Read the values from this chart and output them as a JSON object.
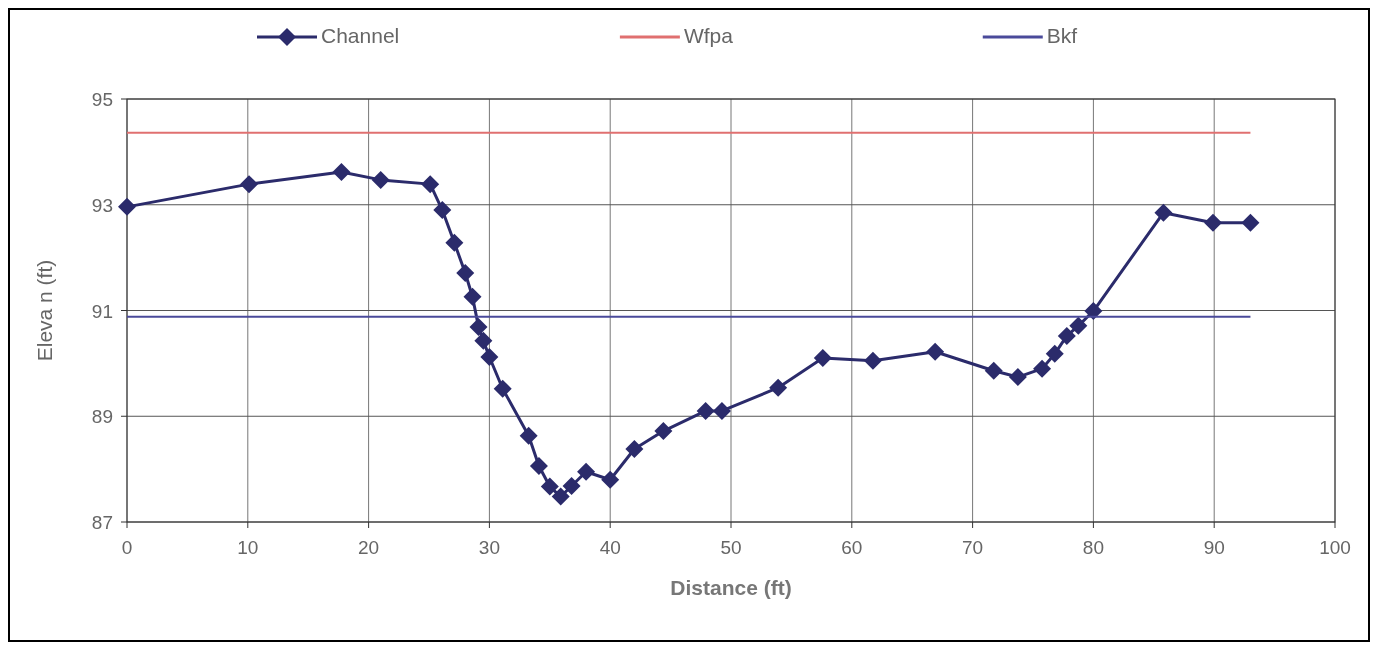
{
  "chart_data": {
    "type": "line",
    "xlabel": "Distance (ft)",
    "ylabel": "Eleva n (ft)",
    "xlim": [
      0,
      100
    ],
    "xticks": [
      0,
      10,
      20,
      30,
      40,
      50,
      60,
      70,
      80,
      90,
      100
    ],
    "ylim": [
      87,
      95
    ],
    "yticks": [
      87,
      89,
      91,
      93,
      95
    ],
    "grid": true,
    "legend": "top",
    "series": [
      {
        "name": "Channel",
        "color": "#2b2b6b",
        "marker": "diamond",
        "x": [
          0,
          10.1,
          17.75,
          21,
          25.1,
          26.1,
          27.1,
          28,
          28.6,
          29.1,
          29.5,
          30,
          31.1,
          33.25,
          34.1,
          35,
          35.9,
          36.8,
          38,
          40,
          42,
          44.4,
          47.9,
          49.25,
          53.9,
          57.6,
          61.75,
          66.9,
          71.75,
          73.75,
          75.75,
          76.8,
          77.8,
          78.75,
          80,
          85.8,
          89.9,
          93
        ],
        "values": [
          92.96,
          93.39,
          93.62,
          93.47,
          93.39,
          92.9,
          92.28,
          91.71,
          91.26,
          90.69,
          90.43,
          90.12,
          89.52,
          88.63,
          88.06,
          87.67,
          87.48,
          87.68,
          87.95,
          87.8,
          88.38,
          88.72,
          89.1,
          89.1,
          89.54,
          90.1,
          90.05,
          90.22,
          89.86,
          89.74,
          89.9,
          90.18,
          90.52,
          90.71,
          90.99,
          92.85,
          92.66,
          92.66
        ]
      },
      {
        "name": "Wfpa",
        "color": "#e07070",
        "marker": "none",
        "x": [
          0,
          93
        ],
        "values": [
          94.36,
          94.36
        ]
      },
      {
        "name": "Bkf",
        "color": "#4a4a9a",
        "marker": "none",
        "x": [
          0,
          93
        ],
        "values": [
          90.88,
          90.88
        ]
      }
    ]
  }
}
